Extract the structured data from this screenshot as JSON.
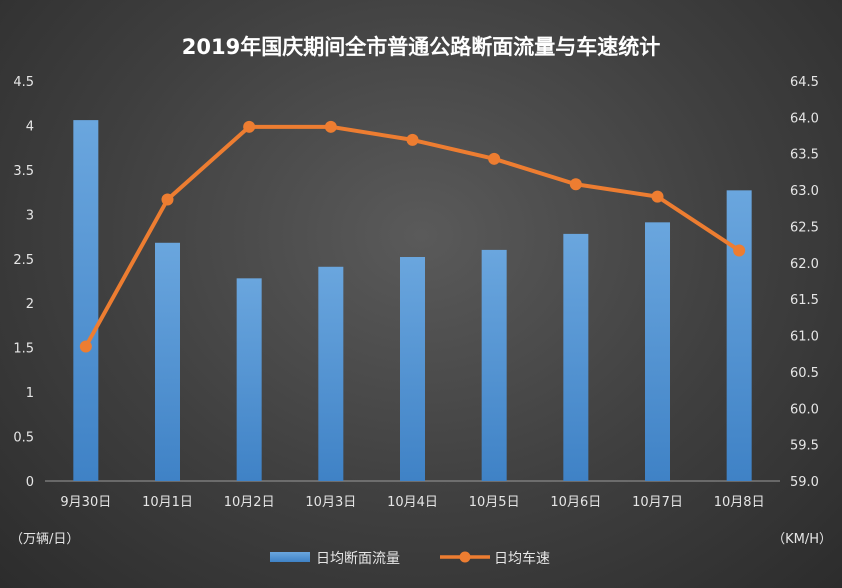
{
  "chart_data": {
    "type": "bar+line",
    "title": "2019年国庆期间全市普通公路断面流量与车速统计",
    "categories": [
      "9月30日",
      "10月1日",
      "10月2日",
      "10月3日",
      "10月4日",
      "10月5日",
      "10月6日",
      "10月7日",
      "10月8日"
    ],
    "series": [
      {
        "name": "日均断面流量",
        "type": "bar",
        "axis": "left",
        "color": "#5b9bd5",
        "values": [
          4.06,
          2.68,
          2.28,
          2.41,
          2.52,
          2.6,
          2.78,
          2.91,
          3.27
        ]
      },
      {
        "name": "日均车速",
        "type": "line",
        "axis": "right",
        "color": "#ed7d31",
        "values": [
          60.85,
          62.87,
          63.87,
          63.87,
          63.69,
          63.43,
          63.08,
          62.91,
          62.17
        ]
      }
    ],
    "y_left": {
      "unit": "（万辆/日）",
      "ylim": [
        0,
        4.5
      ],
      "ticks": [
        "0",
        "0.5",
        "1",
        "1.5",
        "2",
        "2.5",
        "3",
        "3.5",
        "4",
        "4.5"
      ]
    },
    "y_right": {
      "unit": "（KM/H）",
      "ylim": [
        59.0,
        64.5
      ],
      "ticks": [
        "59.0",
        "59.5",
        "60.0",
        "60.5",
        "61.0",
        "61.5",
        "62.0",
        "62.5",
        "63.0",
        "63.5",
        "64.0",
        "64.5"
      ]
    },
    "grid": false,
    "legend": "bottom"
  }
}
